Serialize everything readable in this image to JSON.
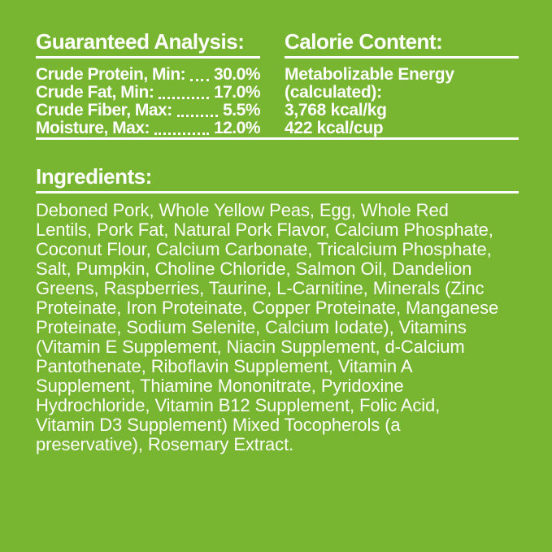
{
  "panel": {
    "background_color": "#78b531",
    "text_color": "#ffffff",
    "divider_color": "#ffffff"
  },
  "guaranteed_analysis": {
    "heading": "Guaranteed Analysis:",
    "rows": [
      {
        "label": "Crude Protein, Min:",
        "value": "30.0%"
      },
      {
        "label": "Crude Fat, Min:",
        "value": "17.0%"
      },
      {
        "label": "Crude Fiber, Max:",
        "value": "5.5%"
      },
      {
        "label": "Moisture, Max:",
        "value": "12.0%"
      }
    ]
  },
  "calorie_content": {
    "heading": "Calorie Content:",
    "lines": [
      "Metabolizable Energy",
      "(calculated):",
      "3,768 kcal/kg",
      "422 kcal/cup"
    ]
  },
  "ingredients": {
    "heading": "Ingredients:",
    "text": "Deboned Pork, Whole Yellow Peas, Egg, Whole Red\nLentils, Pork Fat, Natural Pork Flavor, Calcium Phosphate,\nCoconut Flour, Calcium Carbonate, Tricalcium Phosphate,\nSalt, Pumpkin, Choline Chloride, Salmon Oil, Dandelion\nGreens, Raspberries, Taurine, L-Carnitine, Minerals (Zinc\nProteinate, Iron Proteinate, Copper Proteinate, Manganese\nProteinate, Sodium Selenite, Calcium Iodate), Vitamins\n(Vitamin E Supplement, Niacin Supplement, d-Calcium\nPantothenate, Riboflavin Supplement, Vitamin A\nSupplement, Thiamine Mononitrate, Pyridoxine\nHydrochloride, Vitamin B12 Supplement, Folic Acid,\nVitamin D3 Supplement) Mixed Tocopherols (a\npreservative), Rosemary Extract."
  }
}
